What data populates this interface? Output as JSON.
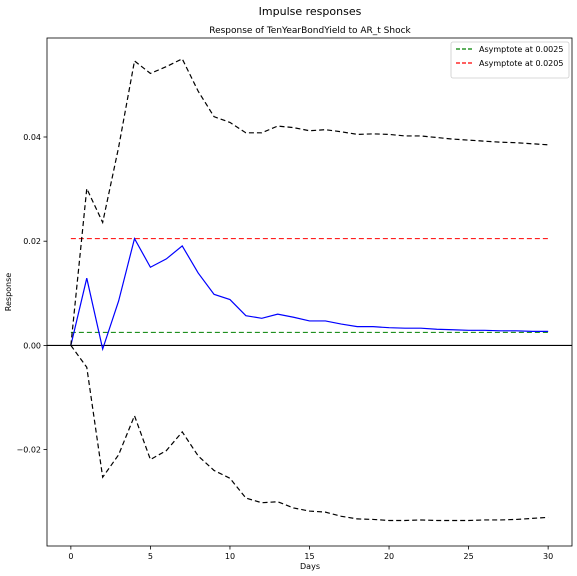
{
  "chart_data": {
    "type": "line",
    "suptitle": "Impulse responses",
    "title": "Response of TenYearBondYield to AR_t Shock",
    "xlabel": "Days",
    "ylabel": "Response",
    "xlim": [
      -1.5,
      31.5
    ],
    "ylim": [
      -0.0385,
      0.059
    ],
    "xticks": [
      0,
      5,
      10,
      15,
      20,
      25,
      30
    ],
    "xtick_labels": [
      "0",
      "5",
      "10",
      "15",
      "20",
      "25",
      "30"
    ],
    "yticks": [
      -0.02,
      0.0,
      0.02,
      0.04
    ],
    "ytick_labels": [
      "−0.02",
      "0.00",
      "0.02",
      "0.04"
    ],
    "grid": false,
    "legend_position": "top-right",
    "x": [
      0,
      1,
      2,
      3,
      4,
      5,
      6,
      7,
      8,
      9,
      10,
      11,
      12,
      13,
      14,
      15,
      16,
      17,
      18,
      19,
      20,
      21,
      22,
      23,
      24,
      25,
      26,
      27,
      28,
      29,
      30
    ],
    "series": [
      {
        "name": "",
        "role": "response",
        "color": "#0000ff",
        "style": "solid",
        "values": [
          0.0,
          0.0129,
          -0.0007,
          0.0085,
          0.0205,
          0.015,
          0.0166,
          0.0191,
          0.0139,
          0.0098,
          0.0088,
          0.0057,
          0.0052,
          0.006,
          0.0054,
          0.0047,
          0.0047,
          0.0041,
          0.0036,
          0.0036,
          0.0034,
          0.0033,
          0.0033,
          0.0031,
          0.003,
          0.0029,
          0.0029,
          0.0028,
          0.0028,
          0.0027,
          0.0027
        ]
      },
      {
        "name": "",
        "role": "upper-band",
        "color": "#000000",
        "style": "dashed",
        "values": [
          0.0,
          0.0301,
          0.0236,
          0.038,
          0.0546,
          0.0522,
          0.0535,
          0.055,
          0.0488,
          0.0439,
          0.0428,
          0.0408,
          0.0408,
          0.0421,
          0.0418,
          0.0412,
          0.0414,
          0.041,
          0.0405,
          0.0406,
          0.0405,
          0.0402,
          0.0402,
          0.0399,
          0.0396,
          0.0394,
          0.0392,
          0.039,
          0.0389,
          0.0387,
          0.0385
        ]
      },
      {
        "name": "",
        "role": "lower-band",
        "color": "#000000",
        "style": "dashed",
        "values": [
          0.0,
          -0.0042,
          -0.0253,
          -0.021,
          -0.0135,
          -0.0219,
          -0.0202,
          -0.0166,
          -0.0212,
          -0.024,
          -0.0255,
          -0.0293,
          -0.0302,
          -0.03,
          -0.0312,
          -0.0318,
          -0.032,
          -0.0328,
          -0.0333,
          -0.0334,
          -0.0336,
          -0.0336,
          -0.0335,
          -0.0336,
          -0.0336,
          -0.0336,
          -0.0335,
          -0.0335,
          -0.0334,
          -0.0332,
          -0.033
        ]
      }
    ],
    "hlines": [
      {
        "y": 0.0,
        "color": "#000000",
        "style": "solid",
        "label": ""
      },
      {
        "y": 0.0025,
        "color": "#008000",
        "style": "dashed",
        "label": "Asymptote at 0.0025"
      },
      {
        "y": 0.0205,
        "color": "#ff0000",
        "style": "dashed",
        "label": "Asymptote at 0.0205"
      }
    ]
  }
}
